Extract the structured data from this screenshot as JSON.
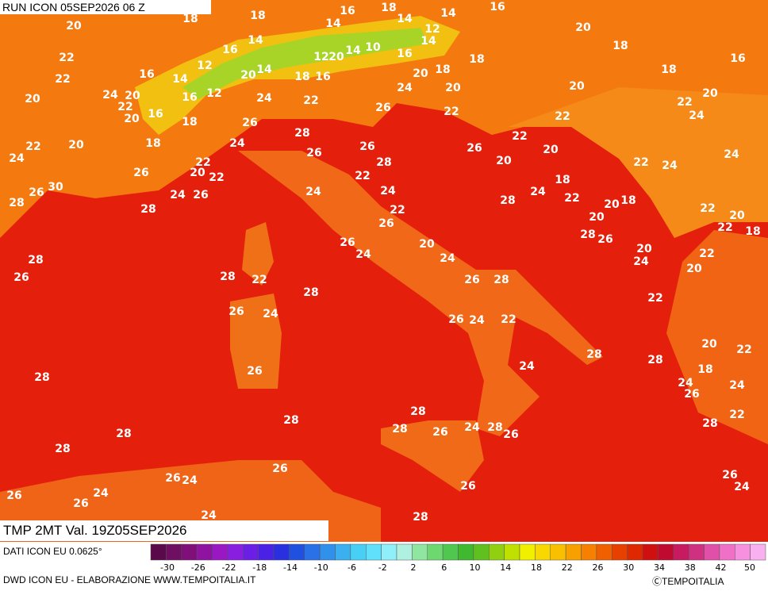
{
  "header": {
    "run": "RUN ICON 05SEP2026 06 Z",
    "field": "TMP 2MT Val. 19Z05SEP2026"
  },
  "footer": {
    "source": "DATI ICON EU 0.0625°",
    "credit": "DWD ICON EU - ELABORAZIONE WWW.TEMPOITALIA.IT",
    "copyright": "ⒸTEMPOITALIA"
  },
  "labels": [
    18,
    18,
    16,
    18,
    14,
    14,
    16,
    20,
    14,
    12,
    14,
    20,
    16,
    14,
    18,
    16,
    22,
    12,
    12,
    20,
    14,
    10,
    16,
    18,
    18,
    18,
    16,
    14,
    20,
    14,
    18,
    16,
    20,
    22,
    20,
    24,
    20,
    22,
    16,
    12,
    24,
    22,
    24,
    20,
    20,
    22,
    20,
    20,
    16,
    18,
    26,
    22,
    26,
    22,
    24,
    28,
    20,
    22,
    18,
    24,
    26,
    26,
    22,
    20,
    24,
    26,
    28,
    20,
    22,
    22,
    24,
    24,
    26,
    20,
    22,
    22,
    18,
    30,
    26,
    24,
    26,
    24,
    24,
    24,
    22,
    20,
    18,
    28,
    28,
    28,
    22,
    20,
    22,
    20,
    26,
    22,
    18,
    28,
    26,
    26,
    20,
    20,
    24,
    24,
    22,
    24,
    28,
    26,
    28,
    22,
    26,
    28,
    20,
    28,
    22,
    26,
    24,
    26,
    24,
    22,
    20,
    22,
    28,
    24,
    18,
    28,
    26,
    28,
    24,
    26,
    24,
    28,
    28,
    22,
    28,
    28,
    28,
    26,
    24,
    28,
    26,
    28,
    26,
    26,
    24,
    26,
    24,
    26,
    26,
    24,
    26,
    24,
    28
  ],
  "legend": {
    "ticks": [
      -30,
      -26,
      -22,
      -18,
      -14,
      -10,
      -6,
      -2,
      2,
      6,
      10,
      14,
      18,
      22,
      26,
      30,
      34,
      38,
      42,
      50
    ],
    "colors": [
      "#5a0a4a",
      "#6e0f62",
      "#800f7a",
      "#8f12a0",
      "#9a18c4",
      "#8a1ee0",
      "#6a1ee6",
      "#4a22e6",
      "#2a30e0",
      "#2050e0",
      "#2a70e6",
      "#3090ea",
      "#3ab0f0",
      "#48cff6",
      "#60e0fa",
      "#90f0fa",
      "#b0f0e0",
      "#90e6a0",
      "#6ed870",
      "#50c850",
      "#40b830",
      "#60c020",
      "#90d010",
      "#c0e000",
      "#f0f000",
      "#f8d800",
      "#f8c000",
      "#f8a000",
      "#f88000",
      "#f06000",
      "#e84000",
      "#e02800",
      "#d01010",
      "#c00a30",
      "#c81a60",
      "#d03080",
      "#e050a8",
      "#f070c8",
      "#f890e0",
      "#f8b0f0"
    ]
  }
}
